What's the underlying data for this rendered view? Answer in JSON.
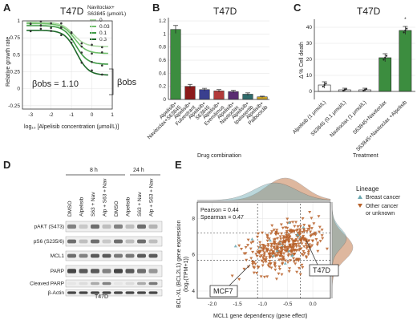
{
  "figure": {
    "panels": {
      "A": {
        "letter": "A",
        "title": "T47D",
        "ylabel": "Relative growth rate",
        "xlabel": "log₁₀ [Alpelisib concentration (μmol/L)]",
        "legend_title_1": "Navitoclax+",
        "legend_title_2": "S63845 (μmol/L)",
        "beta_label": "βobs = 1.10",
        "beta_side": "βobs"
      },
      "B": {
        "letter": "B",
        "title": "T47D",
        "xlabel": "Drug combination"
      },
      "C": {
        "letter": "C",
        "title": "T47D",
        "ylabel": "Δ % Cell death",
        "xlabel": "Treatment"
      },
      "D": {
        "letter": "D",
        "time1": "8 h",
        "time2": "24 h",
        "lanes": [
          "DMSO",
          "Alpelisib",
          "S63 + Nav",
          "Alp + S63 + Nav",
          "DMSO",
          "Alpelisib",
          "S63 + Nav",
          "Alp + S63 + Nav"
        ],
        "rows": [
          "pAKT (S473)",
          "pS6 (S235/6)",
          "MCL1",
          "PARP",
          "Cleaved PARP",
          "β-Actin"
        ],
        "cell_line": "T47D"
      },
      "E": {
        "letter": "E",
        "xlabel": "MCL1 gene dependency (gene effect)",
        "ylabel_1": "BCL-XL (BCL2L1) gene expression",
        "ylabel_2": "(log₂(TPM+1))",
        "pearson": "Pearson = 0.44",
        "spearman": "Spearman = 0.47",
        "callout_1": "MCF7",
        "callout_2": "T47D",
        "legend_title": "Lineage",
        "legend_1": "Breast cancer",
        "legend_2a": "Other cancer",
        "legend_2b": "or unknown"
      }
    }
  },
  "chart_data": [
    {
      "type": "line",
      "title": "T47D",
      "xlabel": "log10 [Alpelisib concentration (μmol/L)]",
      "ylabel": "Relative growth rate",
      "xlim": [
        -3.4,
        1.0
      ],
      "ylim": [
        -0.3,
        1.0
      ],
      "xticks": [
        -3,
        -2,
        -1,
        0,
        1
      ],
      "yticks": [
        -0.25,
        0,
        0.25,
        0.5,
        0.75,
        1.0
      ],
      "legend_title": "Navitoclax+ S63845 (μmol/L)",
      "series": [
        {
          "name": "0",
          "color": "#a9d8a0",
          "top": 0.98,
          "bottom": 0.62,
          "ec50": -0.9,
          "hill": 1.5
        },
        {
          "name": "0.03",
          "color": "#6fbf6a",
          "top": 0.96,
          "bottom": 0.52,
          "ec50": -0.85,
          "hill": 1.5
        },
        {
          "name": "0.1",
          "color": "#3f9a45",
          "top": 0.93,
          "bottom": 0.36,
          "ec50": -0.8,
          "hill": 1.5
        },
        {
          "name": "0.3",
          "color": "#1f6a2b",
          "top": 0.86,
          "bottom": 0.2,
          "ec50": -0.75,
          "hill": 1.5
        }
      ],
      "annotation": "βobs = 1.10"
    },
    {
      "type": "bar",
      "title": "T47D",
      "xlabel": "Drug combination",
      "ylim": [
        0,
        1.25
      ],
      "yticks": [
        0,
        0.2,
        0.4,
        0.6,
        0.8,
        1.0,
        1.2
      ],
      "categories": [
        "Alpelisib+ Navitoclax+S63845",
        "Alpelisib+ Fulvestrant",
        "Alpelisib+ S63845",
        "Alpelisib+ Everolimus",
        "Alpelisib+ Navitoclax",
        "Alpelisib+ Ipatasertib",
        "Alpelisib+ Palbociclib"
      ],
      "values": [
        1.07,
        0.2,
        0.15,
        0.13,
        0.12,
        0.08,
        0.04
      ],
      "errors": [
        0.06,
        0.03,
        0.02,
        0.02,
        0.02,
        0.02,
        0.01
      ],
      "colors": [
        "#3c8d3f",
        "#8b1a1a",
        "#3a3f8f",
        "#b23a3a",
        "#5a2d72",
        "#2f6b6b",
        "#c9a227"
      ]
    },
    {
      "type": "bar",
      "title": "T47D",
      "xlabel": "Treatment",
      "ylabel": "Δ % Cell death",
      "ylim": [
        -5,
        45
      ],
      "yticks": [
        0,
        10,
        20,
        30,
        40
      ],
      "categories": [
        "Alpelisib (1 μmol/L)",
        "S63845 (0.1 μmol/L)",
        "Navitoclax (1 μmol/L)",
        "S63845+Navitoclax",
        "S63845+Navitoclax +Alpelisib"
      ],
      "values": [
        4,
        1,
        1,
        21,
        38
      ],
      "errors": [
        2,
        1,
        1,
        2.5,
        2.5
      ],
      "colors": [
        "#ffffff",
        "#ffffff",
        "#ffffff",
        "#3c8d3f",
        "#3c8d3f"
      ]
    },
    {
      "type": "scatter",
      "xlabel": "MCL1 gene dependency (gene effect)",
      "ylabel": "BCL-XL (BCL2L1) gene expression (log2(TPM+1))",
      "xlim": [
        -2.3,
        0.35
      ],
      "ylim": [
        3.6,
        8.9
      ],
      "xticks": [
        -2.0,
        -1.5,
        -1.0,
        -0.5,
        0.0
      ],
      "yticks": [
        4,
        6,
        8
      ],
      "annotations": [
        "Pearson = 0.44",
        "Spearman = 0.47"
      ],
      "series": [
        {
          "name": "Breast cancer",
          "color": "#6aa7b0"
        },
        {
          "name": "Other cancer or unknown",
          "color": "#b8622a"
        }
      ],
      "highlight": [
        {
          "label": "MCF7",
          "x": -1.1,
          "y": 5.7
        },
        {
          "label": "T47D",
          "x": -0.25,
          "y": 7.2
        }
      ]
    }
  ]
}
